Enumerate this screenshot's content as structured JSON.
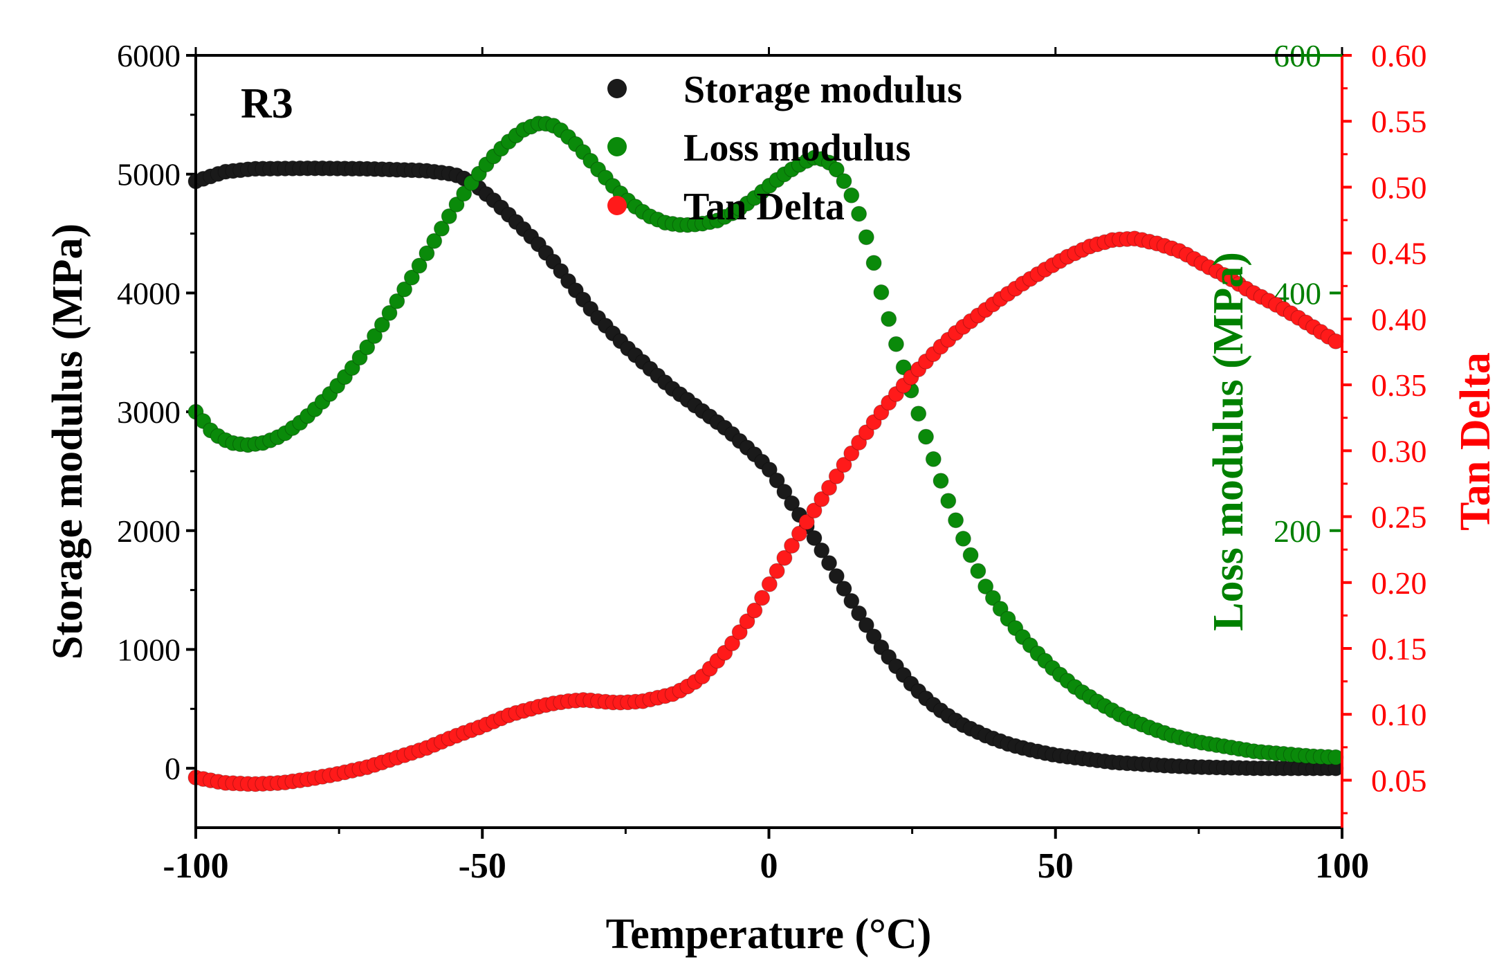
{
  "chart_data": {
    "type": "scatter",
    "title": "",
    "panel_label": "R3",
    "xlabel": "Temperature (°C)",
    "ylabel_left": "Storage modulus (MPa)",
    "ylabel_right_inner": "Loss modulus (MPa)",
    "ylabel_right_outer": "Tan Delta",
    "xlim": [
      -100,
      100
    ],
    "ylim_left": [
      -500,
      6000
    ],
    "ylim_right_inner": [
      -50,
      600
    ],
    "ylim_right_outer": [
      0.014,
      0.6
    ],
    "x_ticks": [
      "-100",
      "-50",
      "0",
      "50",
      "100"
    ],
    "y_left_ticks": [
      "0",
      "1000",
      "2000",
      "3000",
      "4000",
      "5000",
      "6000"
    ],
    "y_right_inner_ticks": [
      "200",
      "400",
      "600"
    ],
    "y_right_outer_ticks": [
      "0.05",
      "0.10",
      "0.15",
      "0.20",
      "0.25",
      "0.30",
      "0.35",
      "0.40",
      "0.45",
      "0.50",
      "0.55",
      "0.60"
    ],
    "legend": [
      "Storage modulus",
      "Loss modulus",
      "Tan Delta"
    ],
    "legend_position": "top-center",
    "colors": {
      "storage": "#1a1a1a",
      "loss": "#0a8a0a",
      "tan": "#ff1a1a",
      "green_axis": "#008000",
      "red_axis": "#ff0000"
    },
    "series": [
      {
        "name": "Storage modulus",
        "axis": "left",
        "x": [
          -100,
          -95,
          -90,
          -80,
          -70,
          -60,
          -55,
          -52,
          -50,
          -48,
          -45,
          -42,
          -40,
          -37,
          -35,
          -32,
          -30,
          -27,
          -25,
          -22,
          -20,
          -17,
          -15,
          -12,
          -10,
          -7,
          -5,
          -2,
          0,
          2,
          4,
          6,
          8,
          10,
          12,
          14,
          16,
          18,
          20,
          22,
          25,
          28,
          31,
          34,
          38,
          42,
          46,
          50,
          55,
          60,
          65,
          70,
          75,
          80,
          85,
          90,
          95,
          100
        ],
        "y": [
          4940,
          5020,
          5045,
          5050,
          5045,
          5030,
          5000,
          4940,
          4860,
          4780,
          4640,
          4500,
          4400,
          4230,
          4100,
          3920,
          3800,
          3650,
          3550,
          3420,
          3330,
          3200,
          3130,
          3020,
          2950,
          2840,
          2750,
          2620,
          2520,
          2380,
          2230,
          2080,
          1930,
          1770,
          1600,
          1440,
          1280,
          1130,
          990,
          870,
          700,
          560,
          450,
          360,
          270,
          200,
          150,
          110,
          80,
          50,
          35,
          20,
          10,
          5,
          0,
          0,
          0,
          0
        ]
      },
      {
        "name": "Loss modulus",
        "axis": "right_inner",
        "x": [
          -100,
          -97,
          -94,
          -91,
          -88,
          -85,
          -82,
          -79,
          -76,
          -73,
          -70,
          -67,
          -64,
          -61,
          -58,
          -55,
          -52,
          -49,
          -46,
          -43,
          -40,
          -38,
          -36,
          -33,
          -30,
          -27,
          -24,
          -21,
          -18,
          -15,
          -12,
          -9,
          -6,
          -3,
          0,
          3,
          6,
          8,
          10,
          12,
          14,
          16,
          18,
          20,
          22,
          24,
          26,
          28,
          30,
          32,
          34,
          36,
          38,
          41,
          44,
          47,
          50,
          54,
          58,
          62,
          66,
          70,
          75,
          80,
          85,
          90,
          95,
          100
        ],
        "y": [
          300,
          282,
          274,
          272,
          274,
          280,
          290,
          303,
          318,
          335,
          355,
          377,
          400,
          423,
          447,
          471,
          492,
          510,
          525,
          537,
          543,
          542,
          536,
          522,
          505,
          489,
          475,
          465,
          459,
          457,
          458,
          461,
          468,
          478,
          490,
          501,
          510,
          514,
          512,
          503,
          487,
          463,
          431,
          393,
          360,
          330,
          300,
          270,
          242,
          216,
          192,
          171,
          151,
          130,
          112,
          96,
          82,
          66,
          54,
          43,
          35,
          28,
          22,
          18,
          14,
          12,
          10,
          9
        ]
      },
      {
        "name": "Tan Delta",
        "axis": "right_outer",
        "x": [
          -100,
          -95,
          -90,
          -85,
          -80,
          -75,
          -70,
          -65,
          -60,
          -55,
          -50,
          -45,
          -40,
          -38,
          -35,
          -32,
          -30,
          -27,
          -25,
          -22,
          -20,
          -17,
          -15,
          -12,
          -10,
          -7,
          -5,
          -2,
          0,
          3,
          6,
          9,
          12,
          15,
          18,
          21,
          24,
          27,
          30,
          33,
          36,
          40,
          44,
          48,
          52,
          56,
          60,
          64,
          68,
          72,
          76,
          80,
          84,
          88,
          92,
          96,
          100
        ],
        "y": [
          0.052,
          0.048,
          0.047,
          0.048,
          0.051,
          0.055,
          0.06,
          0.067,
          0.074,
          0.083,
          0.091,
          0.1,
          0.106,
          0.108,
          0.11,
          0.111,
          0.11,
          0.109,
          0.109,
          0.11,
          0.112,
          0.115,
          0.119,
          0.127,
          0.136,
          0.15,
          0.163,
          0.182,
          0.198,
          0.221,
          0.242,
          0.262,
          0.282,
          0.302,
          0.32,
          0.337,
          0.352,
          0.366,
          0.379,
          0.391,
          0.401,
          0.414,
          0.426,
          0.437,
          0.447,
          0.455,
          0.46,
          0.461,
          0.457,
          0.451,
          0.441,
          0.432,
          0.421,
          0.412,
          0.402,
          0.391,
          0.38
        ]
      }
    ]
  }
}
